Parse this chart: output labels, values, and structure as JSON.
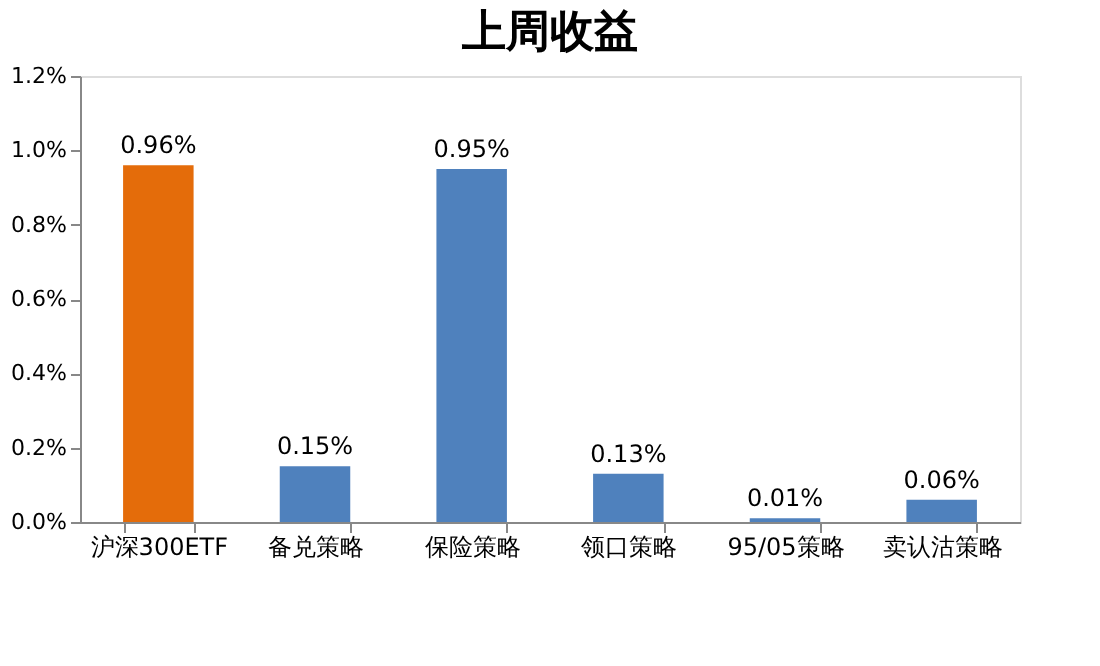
{
  "chart_data": {
    "type": "bar",
    "title": "上周收益",
    "categories": [
      "沪深300ETF",
      "备兑策略",
      "保险策略",
      "领口策略",
      "95/05策略",
      "卖认沽策略"
    ],
    "values": [
      0.96,
      0.15,
      0.95,
      0.13,
      0.01,
      0.06
    ],
    "colors": [
      "#e46c0a",
      "#4f81bd",
      "#4f81bd",
      "#4f81bd",
      "#4f81bd",
      "#4f81bd"
    ],
    "value_labels": [
      "0.96%",
      "0.15%",
      "0.95%",
      "0.13%",
      "0.01%",
      "0.06%"
    ],
    "ylim": [
      0,
      1.2
    ],
    "yticks": [
      {
        "value": 0,
        "label": "0.0%"
      },
      {
        "value": 0.2,
        "label": "0.2%"
      },
      {
        "value": 0.4,
        "label": "0.4%"
      },
      {
        "value": 0.6,
        "label": "0.6%"
      },
      {
        "value": 0.8,
        "label": "0.8%"
      },
      {
        "value": 1.0,
        "label": "1.0%"
      },
      {
        "value": 1.2,
        "label": "1.2%"
      }
    ],
    "grid": false
  }
}
